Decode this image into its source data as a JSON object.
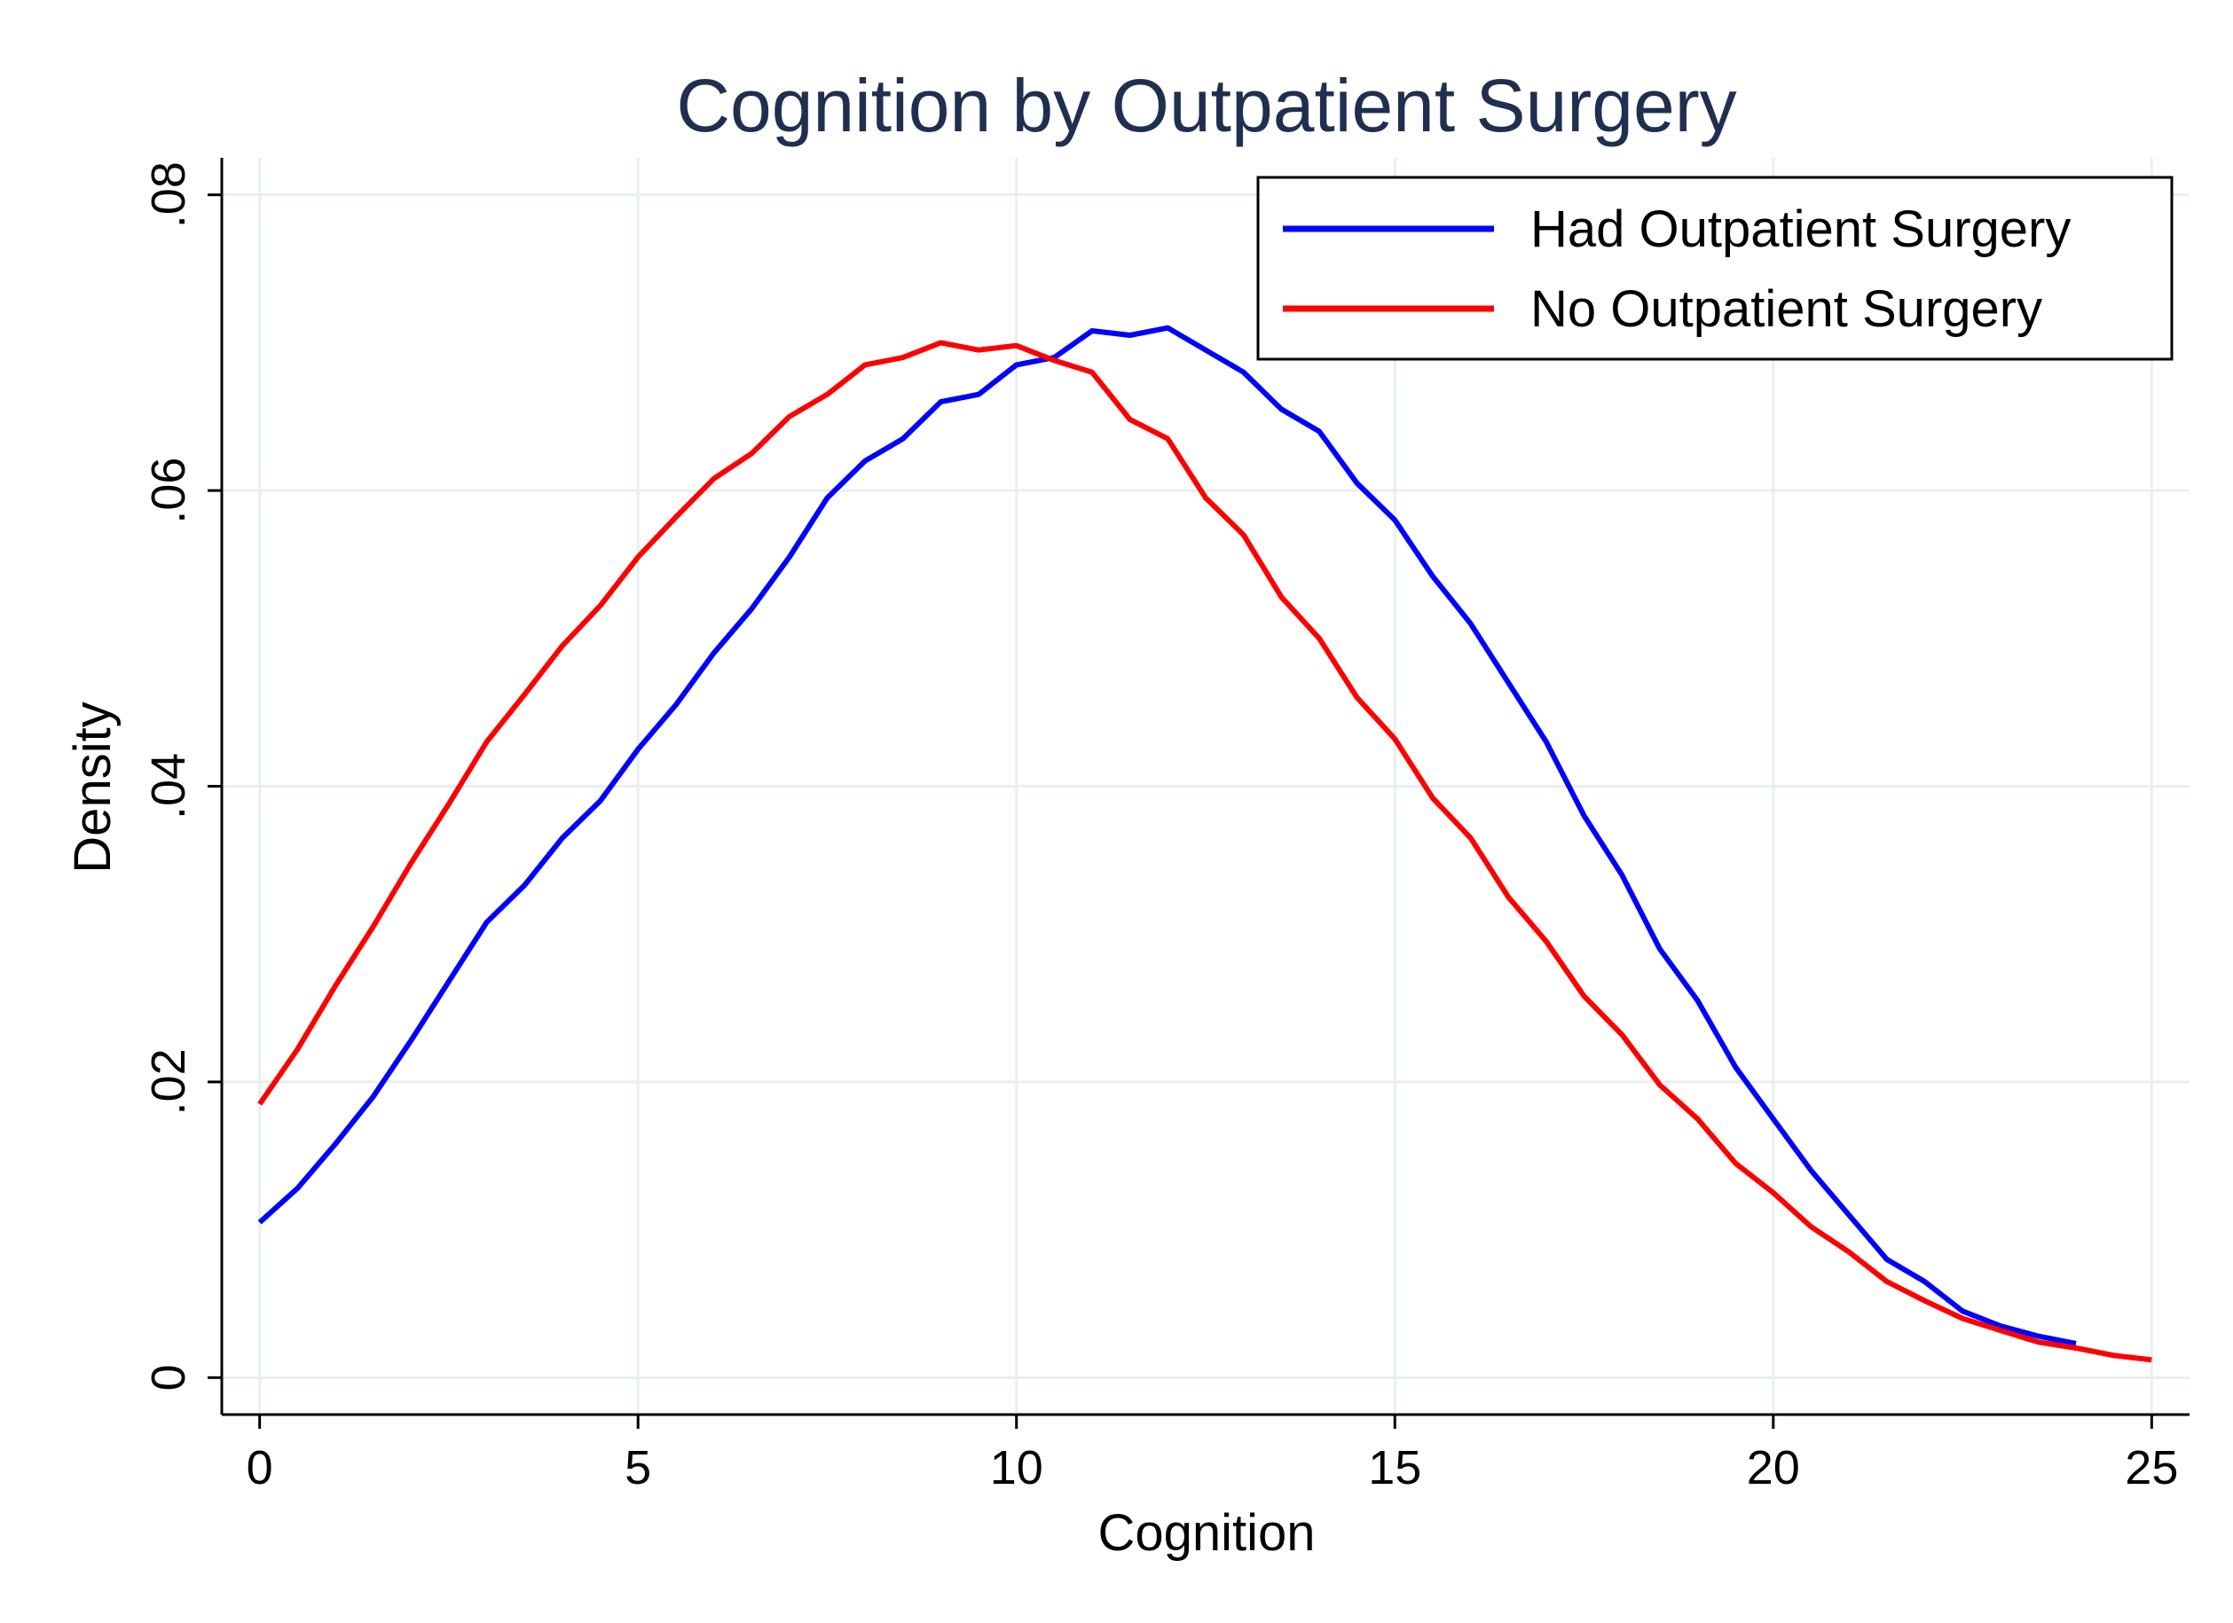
{
  "chart_data": {
    "type": "line",
    "title": "Cognition by Outpatient Surgery",
    "xlabel": "Cognition",
    "ylabel": "Density",
    "xlim": [
      -0.5,
      25.5
    ],
    "ylim": [
      -0.0025,
      0.0825
    ],
    "xticks": [
      0,
      5,
      10,
      15,
      20,
      25
    ],
    "xtick_labels": [
      "0",
      "5",
      "10",
      "15",
      "20",
      "25"
    ],
    "yticks": [
      0,
      0.02,
      0.04,
      0.06,
      0.08
    ],
    "ytick_labels": [
      "0",
      ".02",
      ".04",
      ".06",
      ".08"
    ],
    "grid": true,
    "legend_position": "top-right",
    "series": [
      {
        "name": "Had Outpatient Surgery",
        "color": "#0000ff",
        "x": [
          0,
          0.5,
          1,
          1.5,
          2,
          2.5,
          3,
          3.5,
          4,
          4.5,
          5,
          5.5,
          6,
          6.5,
          7,
          7.5,
          8,
          8.5,
          9,
          9.5,
          10,
          10.5,
          11,
          11.5,
          12,
          12.5,
          13,
          13.5,
          14,
          14.5,
          15,
          15.5,
          16,
          16.5,
          17,
          17.5,
          18,
          18.5,
          19,
          19.5,
          20,
          20.5,
          21,
          21.5,
          22,
          22.5,
          23,
          23.5,
          24
        ],
        "y": [
          0.0105,
          0.0128,
          0.0158,
          0.019,
          0.0228,
          0.0268,
          0.0308,
          0.0333,
          0.0365,
          0.039,
          0.0425,
          0.0455,
          0.049,
          0.052,
          0.0555,
          0.0595,
          0.062,
          0.0635,
          0.066,
          0.0665,
          0.0685,
          0.069,
          0.0708,
          0.0705,
          0.071,
          0.0695,
          0.068,
          0.0655,
          0.064,
          0.0605,
          0.058,
          0.0542,
          0.051,
          0.047,
          0.043,
          0.038,
          0.034,
          0.029,
          0.0255,
          0.021,
          0.0175,
          0.014,
          0.011,
          0.008,
          0.0065,
          0.0045,
          0.0035,
          0.0028,
          0.0023
        ]
      },
      {
        "name": "No Outpatient Surgery",
        "color": "#ff0000",
        "x": [
          0,
          0.5,
          1,
          1.5,
          2,
          2.5,
          3,
          3.5,
          4,
          4.5,
          5,
          5.5,
          6,
          6.5,
          7,
          7.5,
          8,
          8.5,
          9,
          9.5,
          10,
          10.5,
          11,
          11.5,
          12,
          12.5,
          13,
          13.5,
          14,
          14.5,
          15,
          15.5,
          16,
          16.5,
          17,
          17.5,
          18,
          18.5,
          19,
          19.5,
          20,
          20.5,
          21,
          21.5,
          22,
          22.5,
          23,
          23.5,
          24,
          24.5,
          25
        ],
        "y": [
          0.0185,
          0.0222,
          0.0265,
          0.0305,
          0.0348,
          0.0388,
          0.043,
          0.0462,
          0.0495,
          0.0522,
          0.0555,
          0.0582,
          0.0608,
          0.0625,
          0.065,
          0.0665,
          0.0685,
          0.069,
          0.07,
          0.0695,
          0.0698,
          0.0688,
          0.068,
          0.0648,
          0.0635,
          0.0595,
          0.057,
          0.0528,
          0.05,
          0.046,
          0.0432,
          0.0392,
          0.0365,
          0.0325,
          0.0295,
          0.0258,
          0.0232,
          0.0198,
          0.0175,
          0.0145,
          0.0125,
          0.0102,
          0.0085,
          0.0065,
          0.0052,
          0.004,
          0.0032,
          0.0024,
          0.002,
          0.0015,
          0.0012
        ]
      }
    ]
  }
}
